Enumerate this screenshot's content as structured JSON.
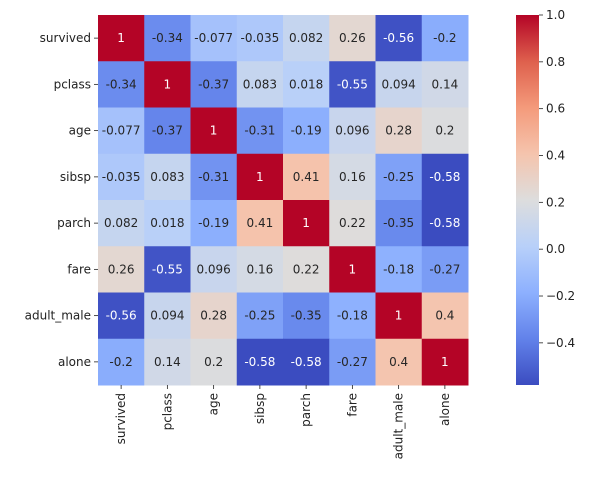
{
  "chart_data": {
    "type": "heatmap",
    "title": "",
    "xlabel": "",
    "ylabel": "",
    "x_labels": [
      "survived",
      "pclass",
      "age",
      "sibsp",
      "parch",
      "fare",
      "adult_male",
      "alone"
    ],
    "y_labels": [
      "survived",
      "pclass",
      "age",
      "sibsp",
      "parch",
      "fare",
      "adult_male",
      "alone"
    ],
    "values": [
      [
        1,
        -0.34,
        -0.077,
        -0.035,
        0.082,
        0.26,
        -0.56,
        -0.2
      ],
      [
        -0.34,
        1,
        -0.37,
        0.083,
        0.018,
        -0.55,
        0.094,
        0.14
      ],
      [
        -0.077,
        -0.37,
        1,
        -0.31,
        -0.19,
        0.096,
        0.28,
        0.2
      ],
      [
        -0.035,
        0.083,
        -0.31,
        1,
        0.41,
        0.16,
        -0.25,
        -0.58
      ],
      [
        0.082,
        0.018,
        -0.19,
        0.41,
        1,
        0.22,
        -0.35,
        -0.58
      ],
      [
        0.26,
        -0.55,
        0.096,
        0.16,
        0.22,
        1,
        -0.18,
        -0.27
      ],
      [
        -0.56,
        0.094,
        0.28,
        -0.25,
        -0.35,
        -0.18,
        1,
        0.4
      ],
      [
        -0.2,
        0.14,
        0.2,
        -0.58,
        -0.58,
        -0.27,
        0.4,
        1
      ]
    ],
    "cell_labels": [
      [
        "1",
        "-0.34",
        "-0.077",
        "-0.035",
        "0.082",
        "0.26",
        "-0.56",
        "-0.2"
      ],
      [
        "-0.34",
        "1",
        "-0.37",
        "0.083",
        "0.018",
        "-0.55",
        "0.094",
        "0.14"
      ],
      [
        "-0.077",
        "-0.37",
        "1",
        "-0.31",
        "-0.19",
        "0.096",
        "0.28",
        "0.2"
      ],
      [
        "-0.035",
        "0.083",
        "-0.31",
        "1",
        "0.41",
        "0.16",
        "-0.25",
        "-0.58"
      ],
      [
        "0.082",
        "0.018",
        "-0.19",
        "0.41",
        "1",
        "0.22",
        "-0.35",
        "-0.58"
      ],
      [
        "0.26",
        "-0.55",
        "0.096",
        "0.16",
        "0.22",
        "1",
        "-0.18",
        "-0.27"
      ],
      [
        "-0.56",
        "0.094",
        "0.28",
        "-0.25",
        "-0.35",
        "-0.18",
        "1",
        "0.4"
      ],
      [
        "-0.2",
        "0.14",
        "0.2",
        "-0.58",
        "-0.58",
        "-0.27",
        "0.4",
        "1"
      ]
    ],
    "colormap": "coolwarm",
    "vmin": -0.58,
    "vmax": 1.0,
    "colorbar": {
      "ticks": [
        -0.4,
        -0.2,
        0.0,
        0.2,
        0.4,
        0.6,
        0.8,
        1.0
      ],
      "tick_labels": [
        "−0.4",
        "−0.2",
        "0.0",
        "0.2",
        "0.4",
        "0.6",
        "0.8",
        "1.0"
      ],
      "placement": "right"
    },
    "grid": false,
    "x_tick_rotation": "vertical"
  }
}
